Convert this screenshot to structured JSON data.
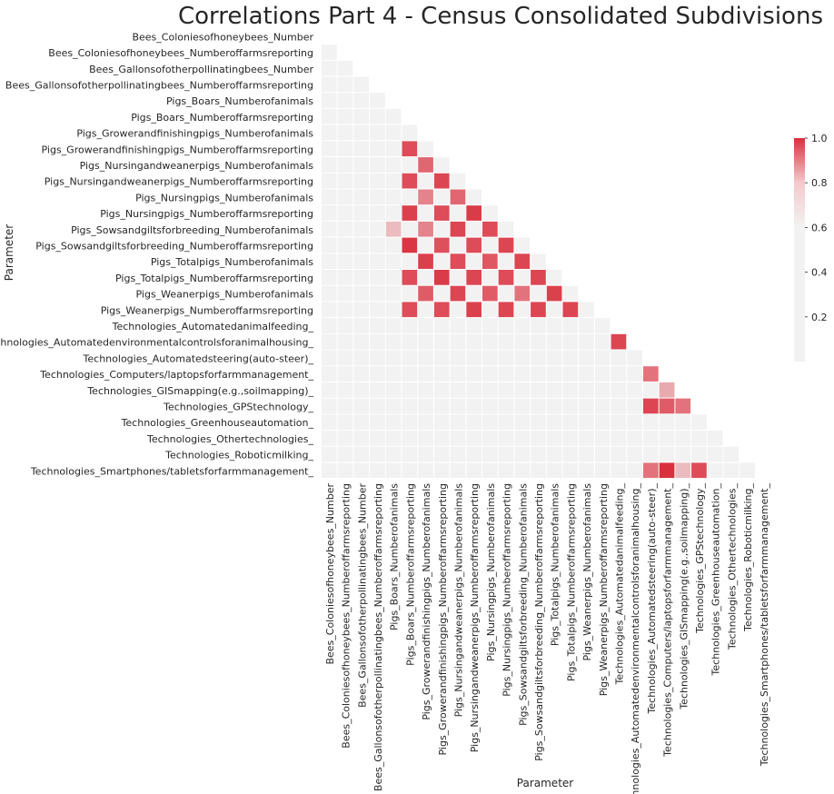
{
  "chart_data": {
    "type": "heatmap",
    "title": "Correlations Part 4 - Census Consolidated Subdivisions",
    "xlabel": "Parameter",
    "ylabel": "Parameter",
    "mask": "upper-triangle",
    "labels": [
      "Bees_Coloniesofhoneybees_Number",
      "Bees_Coloniesofhoneybees_Numberoffarmsreporting",
      "Bees_Gallonsofotherpollinatingbees_Number",
      "Bees_Gallonsofotherpollinatingbees_Numberoffarmsreporting",
      "Pigs_Boars_Numberofanimals",
      "Pigs_Boars_Numberoffarmsreporting",
      "Pigs_Growerandfinishingpigs_Numberofanimals",
      "Pigs_Growerandfinishingpigs_Numberoffarmsreporting",
      "Pigs_Nursingandweanerpigs_Numberofanimals",
      "Pigs_Nursingandweanerpigs_Numberoffarmsreporting",
      "Pigs_Nursingpigs_Numberofanimals",
      "Pigs_Nursingpigs_Numberoffarmsreporting",
      "Pigs_Sowsandgiltsforbreeding_Numberofanimals",
      "Pigs_Sowsandgiltsforbreeding_Numberoffarmsreporting",
      "Pigs_Totalpigs_Numberofanimals",
      "Pigs_Totalpigs_Numberoffarmsreporting",
      "Pigs_Weanerpigs_Numberofanimals",
      "Pigs_Weanerpigs_Numberoffarmsreporting",
      "Technologies_Automatedanimalfeeding_",
      "Technologies_Automatedenvironmentalcontrolsforanimalhousing_",
      "Technologies_Automatedsteering(auto-steer)_",
      "Technologies_Computers/laptopsforfarmmanagement_",
      "Technologies_GISmapping(e.g.,soilmapping)_",
      "Technologies_GPStechnology_",
      "Technologies_Greenhouseautomation_",
      "Technologies_Othertechnologies_",
      "Technologies_Roboticmilking_",
      "Technologies_Smartphones/tabletsforfarmmanagement_"
    ],
    "cells": [
      {
        "row": 12,
        "col": 4,
        "value": 0.75
      },
      {
        "row": 7,
        "col": 5,
        "value": 0.95
      },
      {
        "row": 9,
        "col": 5,
        "value": 0.95
      },
      {
        "row": 11,
        "col": 5,
        "value": 0.97
      },
      {
        "row": 13,
        "col": 5,
        "value": 0.99
      },
      {
        "row": 15,
        "col": 5,
        "value": 0.95
      },
      {
        "row": 17,
        "col": 5,
        "value": 0.95
      },
      {
        "row": 8,
        "col": 6,
        "value": 0.9
      },
      {
        "row": 10,
        "col": 6,
        "value": 0.85
      },
      {
        "row": 12,
        "col": 6,
        "value": 0.85
      },
      {
        "row": 14,
        "col": 6,
        "value": 0.97
      },
      {
        "row": 16,
        "col": 6,
        "value": 0.92
      },
      {
        "row": 9,
        "col": 7,
        "value": 0.96
      },
      {
        "row": 11,
        "col": 7,
        "value": 0.95
      },
      {
        "row": 13,
        "col": 7,
        "value": 0.94
      },
      {
        "row": 15,
        "col": 7,
        "value": 0.98
      },
      {
        "row": 17,
        "col": 7,
        "value": 0.95
      },
      {
        "row": 10,
        "col": 8,
        "value": 0.9
      },
      {
        "row": 12,
        "col": 8,
        "value": 0.96
      },
      {
        "row": 14,
        "col": 8,
        "value": 0.95
      },
      {
        "row": 16,
        "col": 8,
        "value": 0.96
      },
      {
        "row": 11,
        "col": 9,
        "value": 0.98
      },
      {
        "row": 13,
        "col": 9,
        "value": 0.95
      },
      {
        "row": 15,
        "col": 9,
        "value": 0.96
      },
      {
        "row": 17,
        "col": 9,
        "value": 0.97
      },
      {
        "row": 12,
        "col": 10,
        "value": 0.95
      },
      {
        "row": 14,
        "col": 10,
        "value": 0.93
      },
      {
        "row": 16,
        "col": 10,
        "value": 0.92
      },
      {
        "row": 13,
        "col": 11,
        "value": 0.96
      },
      {
        "row": 15,
        "col": 11,
        "value": 0.95
      },
      {
        "row": 17,
        "col": 11,
        "value": 0.96
      },
      {
        "row": 14,
        "col": 12,
        "value": 0.96
      },
      {
        "row": 16,
        "col": 12,
        "value": 0.88
      },
      {
        "row": 15,
        "col": 13,
        "value": 0.96
      },
      {
        "row": 17,
        "col": 13,
        "value": 0.96
      },
      {
        "row": 16,
        "col": 14,
        "value": 0.97
      },
      {
        "row": 17,
        "col": 15,
        "value": 0.96
      },
      {
        "row": 19,
        "col": 18,
        "value": 0.96
      },
      {
        "row": 21,
        "col": 20,
        "value": 0.88
      },
      {
        "row": 22,
        "col": 21,
        "value": 0.78
      },
      {
        "row": 23,
        "col": 20,
        "value": 0.96
      },
      {
        "row": 23,
        "col": 21,
        "value": 0.92
      },
      {
        "row": 23,
        "col": 22,
        "value": 0.88
      },
      {
        "row": 27,
        "col": 20,
        "value": 0.88
      },
      {
        "row": 27,
        "col": 21,
        "value": 1.0
      },
      {
        "row": 27,
        "col": 22,
        "value": 0.75
      },
      {
        "row": 27,
        "col": 23,
        "value": 0.95
      }
    ],
    "default_value": 0.65,
    "colorbar": {
      "vmin": 0.0,
      "vmax": 1.0,
      "ticks": [
        "0.2",
        "0.4",
        "0.6",
        "0.8",
        "1.0"
      ],
      "tick_values": [
        0.2,
        0.4,
        0.6,
        0.8,
        1.0
      ],
      "low_color": "#f2f2f2",
      "high_color": "#d9303e"
    },
    "grid": false,
    "legend": "colorbar-right"
  }
}
